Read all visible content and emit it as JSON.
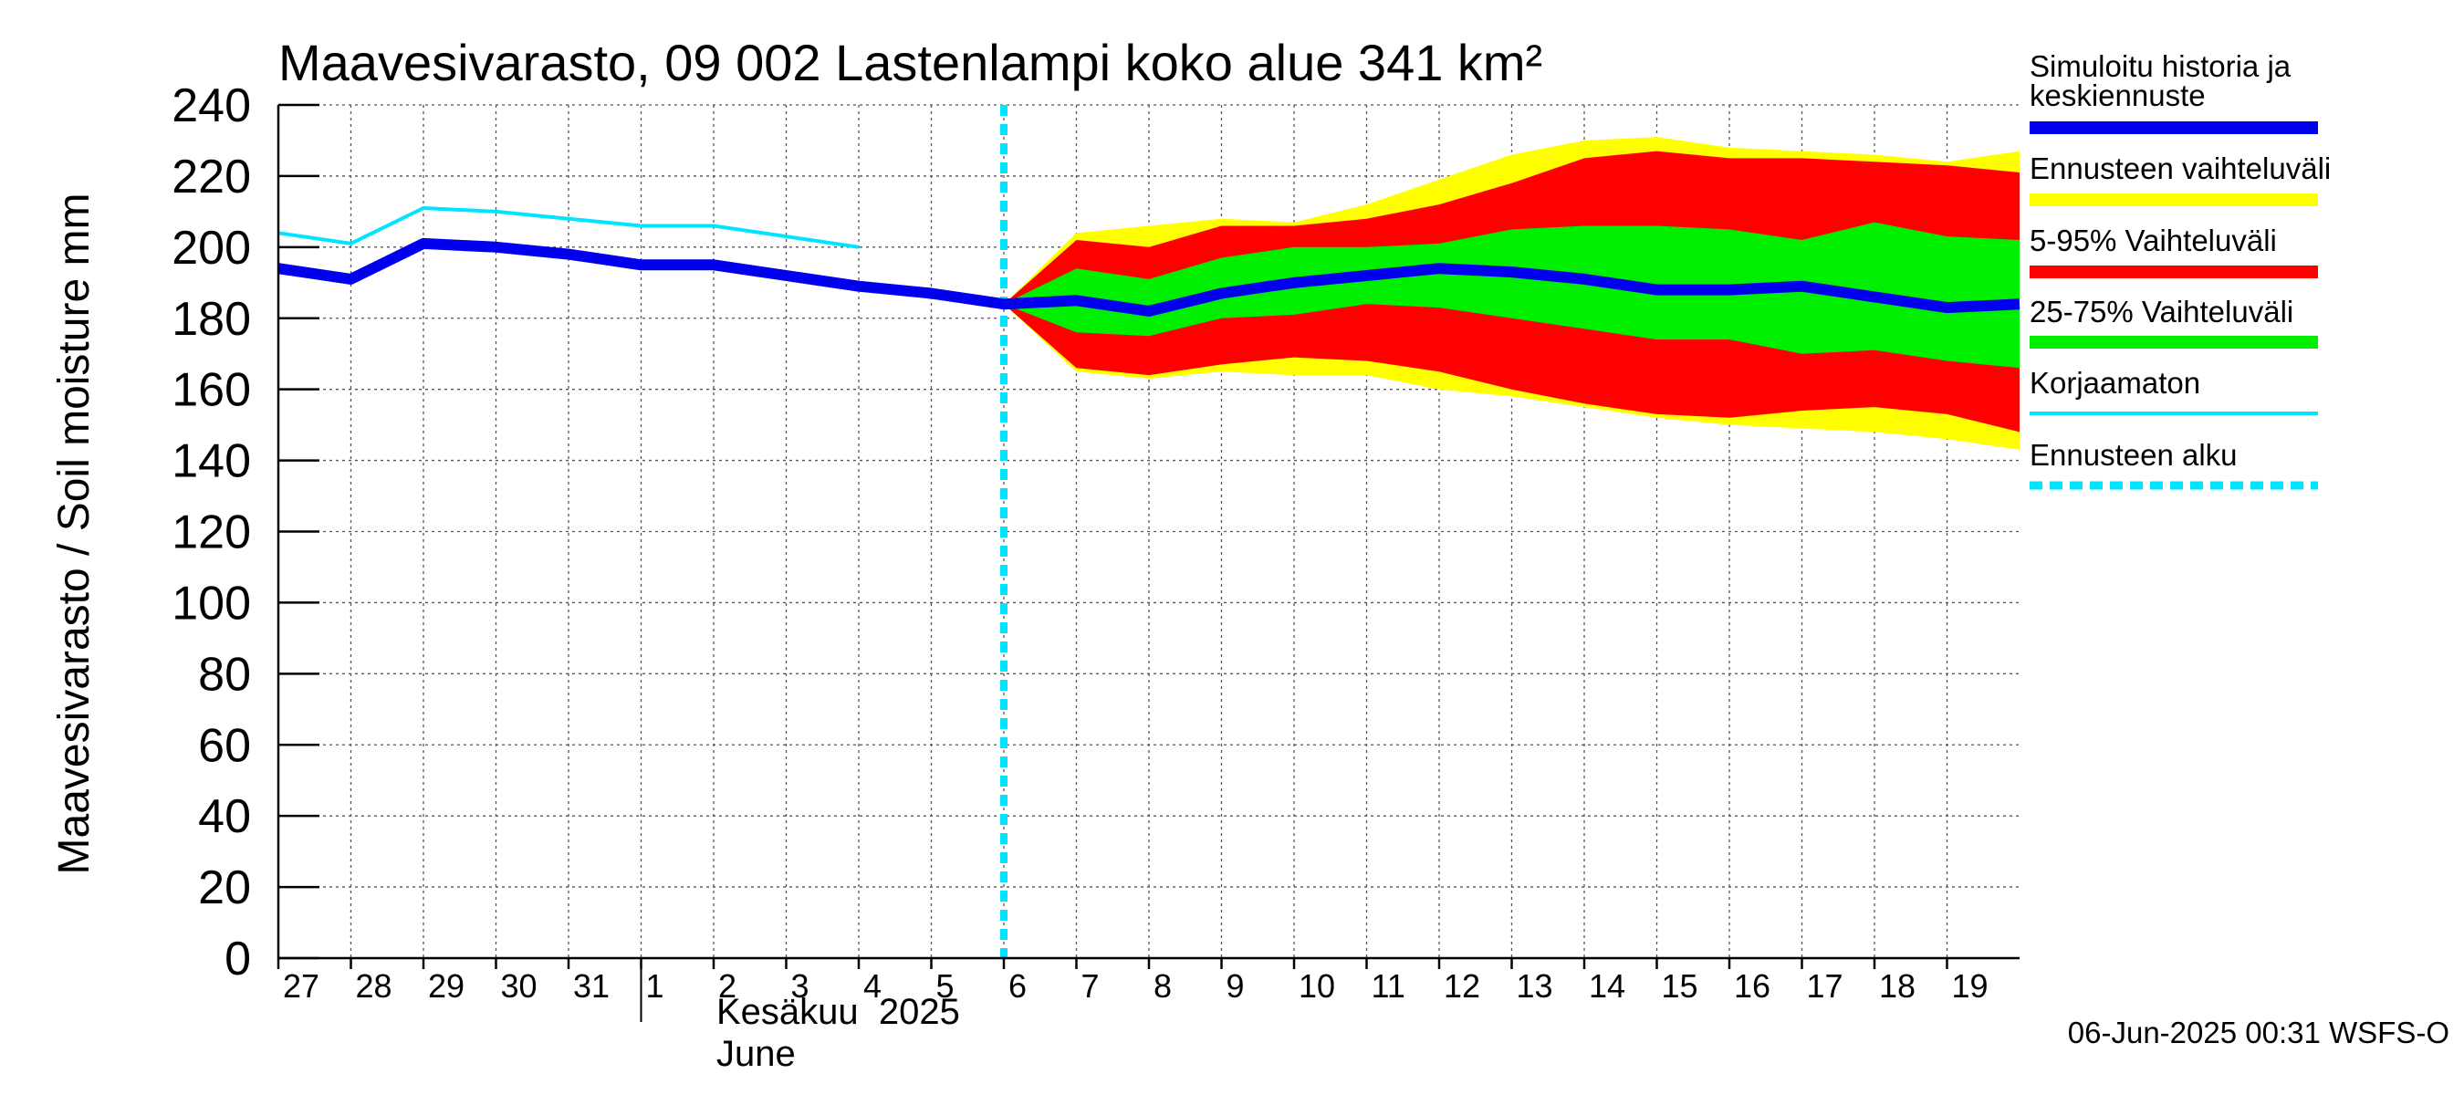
{
  "chart_data": {
    "type": "area",
    "title": "Maavesivarasto, 09 002 Lastenlampi koko alue 341 km²",
    "ylabel": "Maavesivarasto / Soil moisture   mm",
    "ylim": [
      0,
      240
    ],
    "yticks": [
      0,
      20,
      40,
      60,
      80,
      100,
      120,
      140,
      160,
      180,
      200,
      220,
      240
    ],
    "xlim": [
      0,
      24
    ],
    "grid": true,
    "x_tick_labels": [
      {
        "x": 0,
        "label": "27"
      },
      {
        "x": 1,
        "label": "28"
      },
      {
        "x": 2,
        "label": "29"
      },
      {
        "x": 3,
        "label": "30"
      },
      {
        "x": 4,
        "label": "31"
      },
      {
        "x": 5,
        "label": "1"
      },
      {
        "x": 6,
        "label": "2"
      },
      {
        "x": 7,
        "label": "3"
      },
      {
        "x": 8,
        "label": "4"
      },
      {
        "x": 9,
        "label": "5"
      },
      {
        "x": 10,
        "label": "6"
      },
      {
        "x": 11,
        "label": "7"
      },
      {
        "x": 12,
        "label": "8"
      },
      {
        "x": 13,
        "label": "9"
      },
      {
        "x": 14,
        "label": "10"
      },
      {
        "x": 15,
        "label": "11"
      },
      {
        "x": 16,
        "label": "12"
      },
      {
        "x": 17,
        "label": "13"
      },
      {
        "x": 18,
        "label": "14"
      },
      {
        "x": 19,
        "label": "15"
      },
      {
        "x": 20,
        "label": "16"
      },
      {
        "x": 21,
        "label": "17"
      },
      {
        "x": 22,
        "label": "18"
      },
      {
        "x": 23,
        "label": "19"
      }
    ],
    "month_divider_x": 5,
    "month_label_fi": "Kesäkuu  2025",
    "month_label_en": "June",
    "forecast_start_x": 10,
    "series": {
      "history": {
        "name": "Simuloitu historia ja keskiennuste",
        "color": "#0000ee",
        "points": [
          [
            0,
            194
          ],
          [
            1,
            191
          ],
          [
            2,
            201
          ],
          [
            3,
            200
          ],
          [
            4,
            198
          ],
          [
            5,
            195
          ],
          [
            6,
            195
          ],
          [
            7,
            192
          ],
          [
            8,
            189
          ],
          [
            9,
            187
          ],
          [
            10,
            184
          ],
          [
            11,
            185
          ],
          [
            12,
            182
          ],
          [
            13,
            187
          ],
          [
            14,
            190
          ],
          [
            15,
            192
          ],
          [
            16,
            194
          ],
          [
            17,
            193
          ],
          [
            18,
            191
          ],
          [
            19,
            188
          ],
          [
            20,
            188
          ],
          [
            21,
            189
          ],
          [
            22,
            186
          ],
          [
            23,
            183
          ],
          [
            24,
            184
          ]
        ]
      },
      "uncorrected": {
        "name": "Korjaamaton",
        "color": "#00e5ff",
        "points": [
          [
            0,
            204
          ],
          [
            1,
            201
          ],
          [
            2,
            211
          ],
          [
            3,
            210
          ],
          [
            4,
            208
          ],
          [
            5,
            206
          ],
          [
            6,
            206
          ],
          [
            7,
            203
          ],
          [
            8,
            200
          ]
        ]
      },
      "range_min_max": {
        "name": "Ennusteen vaihteluväli",
        "color": "#ffff00",
        "upper": [
          [
            10,
            184
          ],
          [
            11,
            204
          ],
          [
            12,
            206
          ],
          [
            13,
            208
          ],
          [
            14,
            207
          ],
          [
            15,
            212
          ],
          [
            16,
            219
          ],
          [
            17,
            226
          ],
          [
            18,
            230
          ],
          [
            19,
            231
          ],
          [
            20,
            228
          ],
          [
            21,
            227
          ],
          [
            22,
            226
          ],
          [
            23,
            224
          ],
          [
            24,
            227
          ]
        ],
        "lower": [
          [
            10,
            184
          ],
          [
            11,
            165
          ],
          [
            12,
            163
          ],
          [
            13,
            165
          ],
          [
            14,
            164
          ],
          [
            15,
            164
          ],
          [
            16,
            160
          ],
          [
            17,
            158
          ],
          [
            18,
            155
          ],
          [
            19,
            152
          ],
          [
            20,
            150
          ],
          [
            21,
            149
          ],
          [
            22,
            148
          ],
          [
            23,
            146
          ],
          [
            24,
            143
          ]
        ]
      },
      "range_5_95": {
        "name": "5-95% Vaihteluväli",
        "color": "#ff0000",
        "upper": [
          [
            10,
            184
          ],
          [
            11,
            202
          ],
          [
            12,
            200
          ],
          [
            13,
            206
          ],
          [
            14,
            206
          ],
          [
            15,
            208
          ],
          [
            16,
            212
          ],
          [
            17,
            218
          ],
          [
            18,
            225
          ],
          [
            19,
            227
          ],
          [
            20,
            225
          ],
          [
            21,
            225
          ],
          [
            22,
            224
          ],
          [
            23,
            223
          ],
          [
            24,
            221
          ]
        ],
        "lower": [
          [
            10,
            184
          ],
          [
            11,
            166
          ],
          [
            12,
            164
          ],
          [
            13,
            167
          ],
          [
            14,
            169
          ],
          [
            15,
            168
          ],
          [
            16,
            165
          ],
          [
            17,
            160
          ],
          [
            18,
            156
          ],
          [
            19,
            153
          ],
          [
            20,
            152
          ],
          [
            21,
            154
          ],
          [
            22,
            155
          ],
          [
            23,
            153
          ],
          [
            24,
            148
          ]
        ]
      },
      "range_25_75": {
        "name": "25-75% Vaihteluväli",
        "color": "#00ee00",
        "upper": [
          [
            10,
            184
          ],
          [
            11,
            194
          ],
          [
            12,
            191
          ],
          [
            13,
            197
          ],
          [
            14,
            200
          ],
          [
            15,
            200
          ],
          [
            16,
            201
          ],
          [
            17,
            205
          ],
          [
            18,
            206
          ],
          [
            19,
            206
          ],
          [
            20,
            205
          ],
          [
            21,
            202
          ],
          [
            22,
            207
          ],
          [
            23,
            203
          ],
          [
            24,
            202
          ]
        ],
        "lower": [
          [
            10,
            184
          ],
          [
            11,
            176
          ],
          [
            12,
            175
          ],
          [
            13,
            180
          ],
          [
            14,
            181
          ],
          [
            15,
            184
          ],
          [
            16,
            183
          ],
          [
            17,
            180
          ],
          [
            18,
            177
          ],
          [
            19,
            174
          ],
          [
            20,
            174
          ],
          [
            21,
            170
          ],
          [
            22,
            171
          ],
          [
            23,
            168
          ],
          [
            24,
            166
          ]
        ]
      }
    }
  },
  "legend": {
    "items": [
      {
        "label_line1": "Simuloitu historia ja",
        "label_line2": "keskiennuste",
        "color": "#0000ee",
        "style": "thick"
      },
      {
        "label_line1": "Ennusteen vaihteluväli",
        "label_line2": "",
        "color": "#ffff00",
        "style": "thick"
      },
      {
        "label_line1": "5-95% Vaihteluväli",
        "label_line2": "",
        "color": "#ff0000",
        "style": "thick"
      },
      {
        "label_line1": "25-75% Vaihteluväli",
        "label_line2": "",
        "color": "#00ee00",
        "style": "thick"
      },
      {
        "label_line1": "Korjaamaton",
        "label_line2": "",
        "color": "#00e5ff",
        "style": "thin"
      },
      {
        "label_line1": "Ennusteen alku",
        "label_line2": "",
        "color": "#00e5ff",
        "style": "dashed"
      }
    ]
  },
  "footer": {
    "timestamp": "06-Jun-2025 00:31 WSFS-O"
  }
}
